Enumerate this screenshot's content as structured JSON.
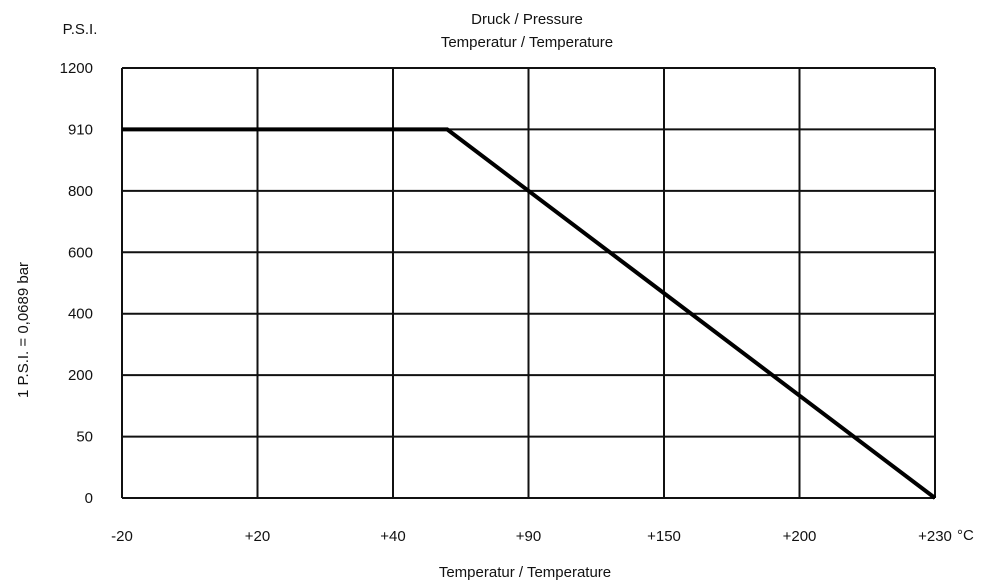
{
  "chart_data": {
    "type": "line",
    "title": "Druck / Pressure",
    "subtitle": "Temperatur / Temperature",
    "xlabel": "Temperatur / Temperature",
    "x_unit": "°C",
    "ylabel": "1 P.S.I. = 0,0689 bar",
    "y_unit": "P.S.I.",
    "categories": [
      "-20",
      "+20",
      "+40",
      "+90",
      "+150",
      "+200",
      "+230"
    ],
    "y_ticks": [
      "0",
      "50",
      "200",
      "400",
      "600",
      "800",
      "910",
      "1200"
    ],
    "series": [
      {
        "x": [
          "-20",
          "+60",
          "+230"
        ],
        "values": [
          "910",
          "910",
          "0"
        ]
      }
    ],
    "grid": true,
    "legend": "none"
  }
}
